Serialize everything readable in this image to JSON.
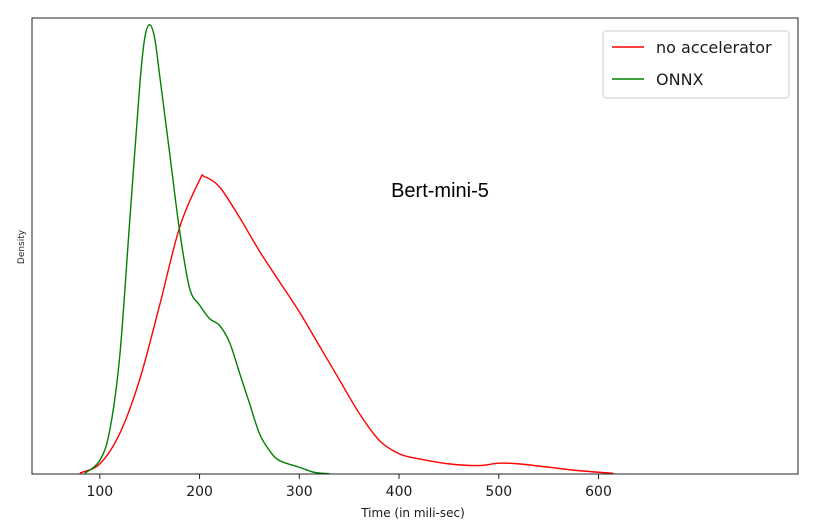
{
  "chart_data": {
    "type": "line",
    "title": "",
    "annotation": "Bert-mini-5",
    "xlabel": "Time (in mili-sec)",
    "ylabel": "Density",
    "xlim": [
      32,
      800
    ],
    "ylim": [
      0,
      0.0135
    ],
    "xticks": [
      100,
      200,
      300,
      400,
      500,
      600
    ],
    "yticks_visible": false,
    "grid": false,
    "legend_position": "top-right",
    "series": [
      {
        "name": "no accelerator",
        "color": "#ff0000",
        "points": [
          [
            80,
            3e-05
          ],
          [
            100,
            0.0003
          ],
          [
            120,
            0.0012
          ],
          [
            140,
            0.0028
          ],
          [
            160,
            0.005
          ],
          [
            180,
            0.0073
          ],
          [
            200,
            0.0087
          ],
          [
            205,
            0.0088
          ],
          [
            220,
            0.0085
          ],
          [
            240,
            0.0076
          ],
          [
            260,
            0.0066
          ],
          [
            280,
            0.0057
          ],
          [
            300,
            0.0048
          ],
          [
            320,
            0.0038
          ],
          [
            340,
            0.0028
          ],
          [
            360,
            0.0018
          ],
          [
            380,
            0.001
          ],
          [
            400,
            0.0006
          ],
          [
            420,
            0.00045
          ],
          [
            450,
            0.0003
          ],
          [
            480,
            0.00025
          ],
          [
            500,
            0.00032
          ],
          [
            520,
            0.0003
          ],
          [
            550,
            0.0002
          ],
          [
            580,
            0.0001
          ],
          [
            615,
            2e-05
          ]
        ]
      },
      {
        "name": "ONNX",
        "color": "#008000",
        "points": [
          [
            85,
            2e-05
          ],
          [
            100,
            0.0004
          ],
          [
            110,
            0.0013
          ],
          [
            120,
            0.0035
          ],
          [
            130,
            0.0075
          ],
          [
            140,
            0.0115
          ],
          [
            145,
            0.0129
          ],
          [
            150,
            0.0133
          ],
          [
            155,
            0.0129
          ],
          [
            160,
            0.0118
          ],
          [
            170,
            0.0095
          ],
          [
            180,
            0.0072
          ],
          [
            190,
            0.0055
          ],
          [
            200,
            0.005
          ],
          [
            210,
            0.0046
          ],
          [
            220,
            0.0044
          ],
          [
            230,
            0.0039
          ],
          [
            240,
            0.003
          ],
          [
            250,
            0.0021
          ],
          [
            260,
            0.0012
          ],
          [
            270,
            0.0007
          ],
          [
            280,
            0.0004
          ],
          [
            300,
            0.0002
          ],
          [
            315,
            5e-05
          ],
          [
            330,
            1e-05
          ]
        ]
      }
    ]
  }
}
